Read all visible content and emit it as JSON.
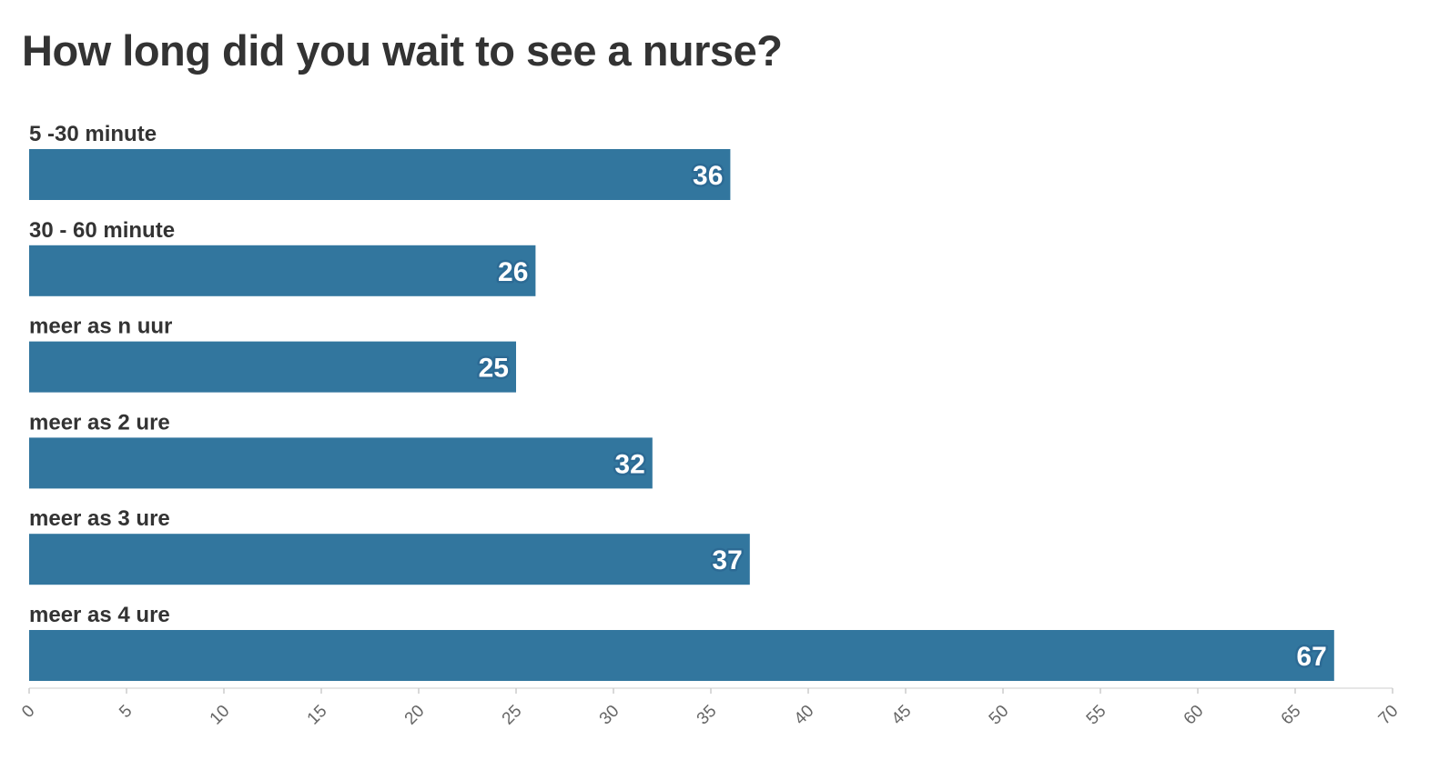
{
  "chart_data": {
    "type": "bar",
    "orientation": "horizontal",
    "title": "How long did you wait to see a nurse?",
    "categories": [
      "5 -30 minute",
      "30 - 60 minute",
      "meer as n uur",
      "meer as 2 ure",
      "meer as 3 ure",
      "meer as 4 ure"
    ],
    "values": [
      36,
      26,
      25,
      32,
      37,
      67
    ],
    "xlim": [
      0,
      70
    ],
    "xticks": [
      0,
      5,
      10,
      15,
      20,
      25,
      30,
      35,
      40,
      45,
      50,
      55,
      60,
      65,
      70
    ],
    "xlabel": "",
    "ylabel": "",
    "grid": false,
    "bar_color": "#32769e",
    "axis_color": "#e6e6e6"
  }
}
